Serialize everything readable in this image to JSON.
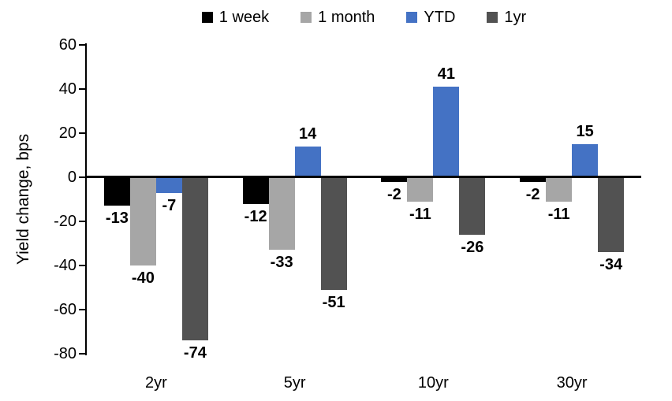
{
  "chart_data": {
    "type": "bar",
    "title": "",
    "ylabel": "Yield change, bps",
    "xlabel": "",
    "categories": [
      "2yr",
      "5yr",
      "10yr",
      "30yr"
    ],
    "series": [
      {
        "name": "1 week",
        "color": "#000000",
        "values": [
          -13,
          -12,
          -2,
          -2
        ]
      },
      {
        "name": "1 month",
        "color": "#A6A6A6",
        "values": [
          -40,
          -33,
          -11,
          -11
        ]
      },
      {
        "name": "YTD",
        "color": "#4472C4",
        "values": [
          -7,
          14,
          41,
          15
        ]
      },
      {
        "name": "1yr",
        "color": "#525252",
        "values": [
          -74,
          -51,
          -26,
          -34
        ]
      }
    ],
    "yticks": [
      60,
      40,
      20,
      0,
      -20,
      -40,
      -60,
      -80
    ],
    "ylim": [
      -80,
      60
    ],
    "grid": false,
    "legend_position": "top",
    "data_labels": "outside-end",
    "axis_color": "#000000",
    "background_color": "#FFFFFF"
  }
}
